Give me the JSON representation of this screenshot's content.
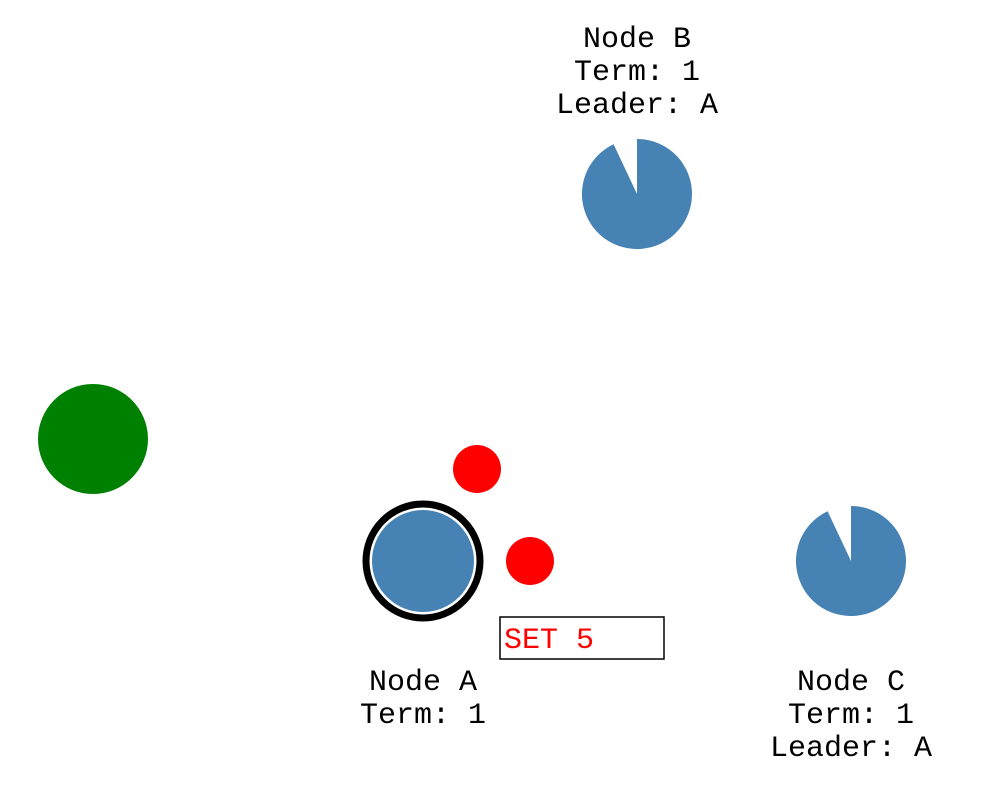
{
  "colors": {
    "node_fill": "#4682b4",
    "client_fill": "#008000",
    "message_fill": "#ff0000",
    "leader_outline": "#000000",
    "command_text": "#ff0000",
    "label_text": "#000000"
  },
  "client": {
    "name": "client"
  },
  "nodes": {
    "b": {
      "name": "Node B",
      "term": "Term: 1",
      "leader": "Leader: A",
      "timeout_remaining": 0.93,
      "is_leader": false
    },
    "a": {
      "name": "Node A",
      "term": "Term: 1",
      "is_leader": true
    },
    "c": {
      "name": "Node C",
      "term": "Term: 1",
      "leader": "Leader: A",
      "timeout_remaining": 0.93,
      "is_leader": false
    }
  },
  "messages": [
    {
      "from": "Node A",
      "to": "Node B"
    },
    {
      "from": "Node A",
      "to": "Node C"
    }
  ],
  "command": {
    "text": "SET 5"
  }
}
